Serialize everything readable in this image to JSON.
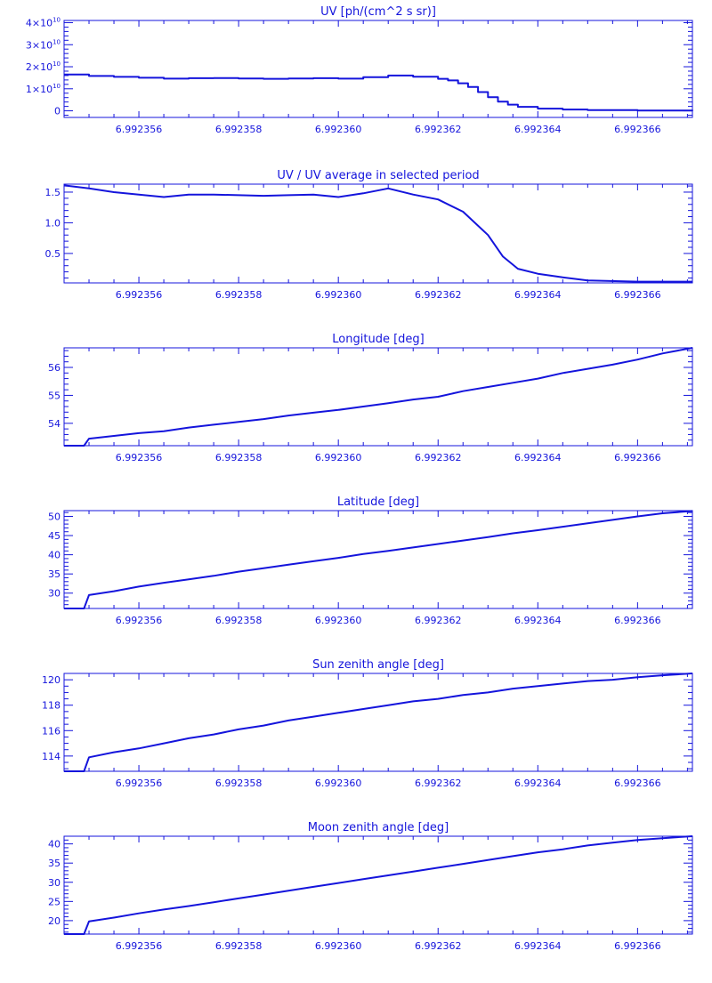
{
  "colors": {
    "ink": "#1414dc",
    "background": "#ffffff"
  },
  "chart_data": [
    {
      "type": "line",
      "title": "UV [ph/(cm^2 s sr)]",
      "xlabel": "",
      "ylabel": "",
      "xlim": [
        6.9923545,
        6.9923671
      ],
      "ylim": [
        -0.3,
        4.1
      ],
      "grid": false,
      "x_ticks": [
        6.992356,
        6.992358,
        6.99236,
        6.992362,
        6.992364,
        6.992366
      ],
      "x_tick_labels": [
        "6.992356",
        "6.992358",
        "6.992360",
        "6.992362",
        "6.992364",
        "6.992366"
      ],
      "y_ticks": [
        0,
        1,
        2,
        3,
        4
      ],
      "y_tick_labels": [
        {
          "mantissa": "0",
          "exp": ""
        },
        {
          "mantissa": "1×10",
          "exp": "10"
        },
        {
          "mantissa": "2×10",
          "exp": "10"
        },
        {
          "mantissa": "3×10",
          "exp": "10"
        },
        {
          "mantissa": "4×10",
          "exp": "10"
        }
      ],
      "minor_y": 5,
      "minor_x": 4,
      "step": true,
      "series": [
        {
          "values": [
            [
              6.9923545,
              1.65
            ],
            [
              6.992355,
              1.58
            ],
            [
              6.9923555,
              1.54
            ],
            [
              6.992356,
              1.5
            ],
            [
              6.9923565,
              1.46
            ],
            [
              6.992357,
              1.48
            ],
            [
              6.9923575,
              1.49
            ],
            [
              6.992358,
              1.47
            ],
            [
              6.9923585,
              1.45
            ],
            [
              6.992359,
              1.47
            ],
            [
              6.9923595,
              1.48
            ],
            [
              6.99236,
              1.46
            ],
            [
              6.9923605,
              1.53
            ],
            [
              6.992361,
              1.6
            ],
            [
              6.9923615,
              1.55
            ],
            [
              6.992362,
              1.45
            ],
            [
              6.9923622,
              1.38
            ],
            [
              6.9923624,
              1.25
            ],
            [
              6.9923626,
              1.08
            ],
            [
              6.9923628,
              0.85
            ],
            [
              6.992363,
              0.62
            ],
            [
              6.9923632,
              0.42
            ],
            [
              6.9923634,
              0.28
            ],
            [
              6.9923636,
              0.18
            ],
            [
              6.992364,
              0.1
            ],
            [
              6.9923645,
              0.06
            ],
            [
              6.992365,
              0.03
            ],
            [
              6.992366,
              0.01
            ],
            [
              6.9923671,
              0.0
            ]
          ]
        }
      ]
    },
    {
      "type": "line",
      "title": "UV / UV average in selected period",
      "xlabel": "",
      "ylabel": "",
      "xlim": [
        6.9923545,
        6.9923671
      ],
      "ylim": [
        0.02,
        1.63
      ],
      "grid": false,
      "x_ticks": [
        6.992356,
        6.992358,
        6.99236,
        6.992362,
        6.992364,
        6.992366
      ],
      "x_tick_labels": [
        "6.992356",
        "6.992358",
        "6.992360",
        "6.992362",
        "6.992364",
        "6.992366"
      ],
      "y_ticks": [
        0.5,
        1.0,
        1.5
      ],
      "y_tick_labels": [
        {
          "mantissa": "0.5",
          "exp": ""
        },
        {
          "mantissa": "1.0",
          "exp": ""
        },
        {
          "mantissa": "1.5",
          "exp": ""
        }
      ],
      "minor_y": 5,
      "minor_x": 4,
      "step": false,
      "series": [
        {
          "values": [
            [
              6.9923545,
              1.61
            ],
            [
              6.992355,
              1.56
            ],
            [
              6.9923555,
              1.5
            ],
            [
              6.992356,
              1.46
            ],
            [
              6.9923565,
              1.42
            ],
            [
              6.992357,
              1.46
            ],
            [
              6.9923575,
              1.46
            ],
            [
              6.992358,
              1.45
            ],
            [
              6.9923585,
              1.44
            ],
            [
              6.992359,
              1.45
            ],
            [
              6.9923595,
              1.46
            ],
            [
              6.99236,
              1.42
            ],
            [
              6.9923605,
              1.48
            ],
            [
              6.992361,
              1.56
            ],
            [
              6.9923615,
              1.46
            ],
            [
              6.992362,
              1.38
            ],
            [
              6.9923625,
              1.18
            ],
            [
              6.992363,
              0.8
            ],
            [
              6.9923633,
              0.45
            ],
            [
              6.9923636,
              0.25
            ],
            [
              6.992364,
              0.17
            ],
            [
              6.9923645,
              0.11
            ],
            [
              6.992365,
              0.06
            ],
            [
              6.992366,
              0.04
            ],
            [
              6.9923671,
              0.04
            ]
          ]
        }
      ]
    },
    {
      "type": "line",
      "title": "Longitude [deg]",
      "xlabel": "",
      "ylabel": "",
      "xlim": [
        6.9923545,
        6.9923671
      ],
      "ylim": [
        53.2,
        56.7
      ],
      "grid": false,
      "x_ticks": [
        6.992356,
        6.992358,
        6.99236,
        6.992362,
        6.992364,
        6.992366
      ],
      "x_tick_labels": [
        "6.992356",
        "6.992358",
        "6.992360",
        "6.992362",
        "6.992364",
        "6.992366"
      ],
      "y_ticks": [
        54,
        55,
        56
      ],
      "y_tick_labels": [
        {
          "mantissa": "54",
          "exp": ""
        },
        {
          "mantissa": "55",
          "exp": ""
        },
        {
          "mantissa": "56",
          "exp": ""
        }
      ],
      "minor_y": 5,
      "minor_x": 4,
      "step": false,
      "series": [
        {
          "values": [
            [
              6.9923545,
              53.2
            ],
            [
              6.9923549,
              53.2
            ],
            [
              6.992355,
              53.45
            ],
            [
              6.9923555,
              53.55
            ],
            [
              6.992356,
              53.65
            ],
            [
              6.9923565,
              53.72
            ],
            [
              6.992357,
              53.85
            ],
            [
              6.9923575,
              53.95
            ],
            [
              6.992358,
              54.05
            ],
            [
              6.9923585,
              54.15
            ],
            [
              6.992359,
              54.28
            ],
            [
              6.9923595,
              54.38
            ],
            [
              6.99236,
              54.48
            ],
            [
              6.9923605,
              54.6
            ],
            [
              6.992361,
              54.72
            ],
            [
              6.9923615,
              54.85
            ],
            [
              6.992362,
              54.95
            ],
            [
              6.9923625,
              55.15
            ],
            [
              6.992363,
              55.3
            ],
            [
              6.9923635,
              55.45
            ],
            [
              6.992364,
              55.6
            ],
            [
              6.9923645,
              55.8
            ],
            [
              6.992365,
              55.95
            ],
            [
              6.9923655,
              56.1
            ],
            [
              6.992366,
              56.28
            ],
            [
              6.9923665,
              56.5
            ],
            [
              6.9923671,
              56.7
            ]
          ]
        }
      ]
    },
    {
      "type": "line",
      "title": "Latitude [deg]",
      "xlabel": "",
      "ylabel": "",
      "xlim": [
        6.9923545,
        6.9923671
      ],
      "ylim": [
        26,
        51.5
      ],
      "grid": false,
      "x_ticks": [
        6.992356,
        6.992358,
        6.99236,
        6.992362,
        6.992364,
        6.992366
      ],
      "x_tick_labels": [
        "6.992356",
        "6.992358",
        "6.992360",
        "6.992362",
        "6.992364",
        "6.992366"
      ],
      "y_ticks": [
        30,
        35,
        40,
        45,
        50
      ],
      "y_tick_labels": [
        {
          "mantissa": "30",
          "exp": ""
        },
        {
          "mantissa": "35",
          "exp": ""
        },
        {
          "mantissa": "40",
          "exp": ""
        },
        {
          "mantissa": "45",
          "exp": ""
        },
        {
          "mantissa": "50",
          "exp": ""
        }
      ],
      "minor_y": 5,
      "minor_x": 4,
      "step": false,
      "series": [
        {
          "values": [
            [
              6.9923545,
              26.0
            ],
            [
              6.9923549,
              26.0
            ],
            [
              6.992355,
              29.5
            ],
            [
              6.9923555,
              30.5
            ],
            [
              6.992356,
              31.7
            ],
            [
              6.9923565,
              32.7
            ],
            [
              6.992357,
              33.6
            ],
            [
              6.9923575,
              34.5
            ],
            [
              6.992358,
              35.6
            ],
            [
              6.9923585,
              36.5
            ],
            [
              6.992359,
              37.4
            ],
            [
              6.9923595,
              38.3
            ],
            [
              6.99236,
              39.2
            ],
            [
              6.9923605,
              40.2
            ],
            [
              6.992361,
              41.0
            ],
            [
              6.9923615,
              41.9
            ],
            [
              6.992362,
              42.8
            ],
            [
              6.9923625,
              43.7
            ],
            [
              6.992363,
              44.6
            ],
            [
              6.9923635,
              45.6
            ],
            [
              6.992364,
              46.4
            ],
            [
              6.9923645,
              47.3
            ],
            [
              6.992365,
              48.2
            ],
            [
              6.9923655,
              49.1
            ],
            [
              6.992366,
              50.0
            ],
            [
              6.9923665,
              50.8
            ],
            [
              6.9923671,
              51.4
            ]
          ]
        }
      ]
    },
    {
      "type": "line",
      "title": "Sun zenith angle [deg]",
      "xlabel": "",
      "ylabel": "",
      "xlim": [
        6.9923545,
        6.9923671
      ],
      "ylim": [
        112.8,
        120.5
      ],
      "grid": false,
      "x_ticks": [
        6.992356,
        6.992358,
        6.99236,
        6.992362,
        6.992364,
        6.992366
      ],
      "x_tick_labels": [
        "6.992356",
        "6.992358",
        "6.992360",
        "6.992362",
        "6.992364",
        "6.992366"
      ],
      "y_ticks": [
        114,
        116,
        118,
        120
      ],
      "y_tick_labels": [
        {
          "mantissa": "114",
          "exp": ""
        },
        {
          "mantissa": "116",
          "exp": ""
        },
        {
          "mantissa": "118",
          "exp": ""
        },
        {
          "mantissa": "120",
          "exp": ""
        }
      ],
      "minor_y": 4,
      "minor_x": 4,
      "step": false,
      "series": [
        {
          "values": [
            [
              6.9923545,
              112.8
            ],
            [
              6.9923549,
              112.8
            ],
            [
              6.992355,
              113.9
            ],
            [
              6.9923555,
              114.3
            ],
            [
              6.992356,
              114.6
            ],
            [
              6.9923565,
              115.0
            ],
            [
              6.992357,
              115.4
            ],
            [
              6.9923575,
              115.7
            ],
            [
              6.992358,
              116.1
            ],
            [
              6.9923585,
              116.4
            ],
            [
              6.992359,
              116.8
            ],
            [
              6.9923595,
              117.1
            ],
            [
              6.99236,
              117.4
            ],
            [
              6.9923605,
              117.7
            ],
            [
              6.992361,
              118.0
            ],
            [
              6.9923615,
              118.3
            ],
            [
              6.992362,
              118.5
            ],
            [
              6.9923625,
              118.8
            ],
            [
              6.992363,
              119.0
            ],
            [
              6.9923635,
              119.3
            ],
            [
              6.992364,
              119.5
            ],
            [
              6.9923645,
              119.7
            ],
            [
              6.992365,
              119.9
            ],
            [
              6.9923655,
              120.0
            ],
            [
              6.992366,
              120.2
            ],
            [
              6.9923665,
              120.35
            ],
            [
              6.9923671,
              120.5
            ]
          ]
        }
      ]
    },
    {
      "type": "line",
      "title": "Moon zenith angle [deg]",
      "xlabel": "",
      "ylabel": "",
      "xlim": [
        6.9923545,
        6.9923671
      ],
      "ylim": [
        16.5,
        42
      ],
      "grid": false,
      "x_ticks": [
        6.992356,
        6.992358,
        6.99236,
        6.992362,
        6.992364,
        6.992366
      ],
      "x_tick_labels": [
        "6.992356",
        "6.992358",
        "6.992360",
        "6.992362",
        "6.992364",
        "6.992366"
      ],
      "y_ticks": [
        20,
        25,
        30,
        35,
        40
      ],
      "y_tick_labels": [
        {
          "mantissa": "20",
          "exp": ""
        },
        {
          "mantissa": "25",
          "exp": ""
        },
        {
          "mantissa": "30",
          "exp": ""
        },
        {
          "mantissa": "35",
          "exp": ""
        },
        {
          "mantissa": "40",
          "exp": ""
        }
      ],
      "minor_y": 5,
      "minor_x": 4,
      "step": false,
      "series": [
        {
          "values": [
            [
              6.9923545,
              16.5
            ],
            [
              6.9923549,
              16.5
            ],
            [
              6.992355,
              19.8
            ],
            [
              6.9923555,
              20.8
            ],
            [
              6.992356,
              21.9
            ],
            [
              6.9923565,
              22.9
            ],
            [
              6.992357,
              23.8
            ],
            [
              6.9923575,
              24.8
            ],
            [
              6.992358,
              25.8
            ],
            [
              6.9923585,
              26.8
            ],
            [
              6.992359,
              27.8
            ],
            [
              6.9923595,
              28.8
            ],
            [
              6.99236,
              29.8
            ],
            [
              6.9923605,
              30.8
            ],
            [
              6.992361,
              31.8
            ],
            [
              6.9923615,
              32.8
            ],
            [
              6.992362,
              33.8
            ],
            [
              6.9923625,
              34.8
            ],
            [
              6.992363,
              35.8
            ],
            [
              6.9923635,
              36.8
            ],
            [
              6.992364,
              37.8
            ],
            [
              6.9923645,
              38.6
            ],
            [
              6.992365,
              39.6
            ],
            [
              6.9923655,
              40.3
            ],
            [
              6.992366,
              41.0
            ],
            [
              6.9923665,
              41.5
            ],
            [
              6.9923671,
              42.0
            ]
          ]
        }
      ]
    }
  ]
}
